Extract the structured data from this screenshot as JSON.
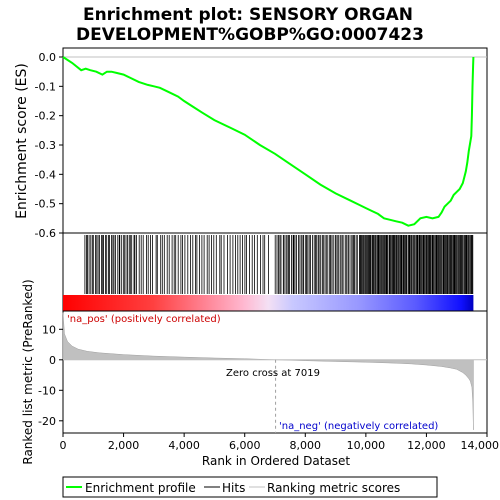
{
  "chart_data": {
    "type": "line",
    "title_lines": [
      "Enrichment plot: SENSORY ORGAN",
      "DEVELOPMENT%GOBP%GO:0007423"
    ],
    "xlabel": "Rank in Ordered Dataset",
    "ylabel_top": "Enrichment score (ES)",
    "ylabel_bottom": "Ranked list metric (PreRanked)",
    "xlim": [
      0,
      14000
    ],
    "x_ticks": [
      0,
      2000,
      4000,
      6000,
      8000,
      10000,
      12000,
      14000
    ],
    "x_tick_labels": [
      "0",
      "2,000",
      "4,000",
      "6,000",
      "8,000",
      "10,000",
      "12,000",
      "14,000"
    ],
    "es_ylim": [
      -0.6,
      0.0
    ],
    "es_ticks": [
      0.0,
      -0.1,
      -0.2,
      -0.3,
      -0.4,
      -0.5,
      -0.6
    ],
    "es_tick_labels": [
      "0.0",
      "-0.1",
      "-0.2",
      "-0.3",
      "-0.4",
      "-0.5",
      "-0.6"
    ],
    "metric_ylim": [
      -24,
      16
    ],
    "metric_ticks": [
      10,
      0,
      -10,
      -20
    ],
    "metric_tick_labels": [
      "10",
      "0",
      "-10",
      "-20"
    ],
    "n_genes": 13550,
    "zero_cross_rank": 7019,
    "zero_cross_label": "Zero cross at 7019",
    "pos_label": "'na_pos' (positively correlated)",
    "neg_label": "'na_neg' (negatively correlated)",
    "es_curve": {
      "x": [
        0,
        300,
        600,
        750,
        900,
        1100,
        1300,
        1450,
        1600,
        1800,
        2000,
        2200,
        2500,
        2800,
        3000,
        3200,
        3500,
        3800,
        4000,
        4300,
        4600,
        5000,
        5500,
        6000,
        6500,
        7000,
        7500,
        8000,
        8500,
        9000,
        9500,
        9800,
        10000,
        10200,
        10400,
        10600,
        10800,
        11000,
        11200,
        11400,
        11600,
        11800,
        12000,
        12200,
        12400,
        12500,
        12600,
        12700,
        12800,
        12900,
        13000,
        13100,
        13200,
        13300,
        13350,
        13400,
        13450,
        13480,
        13500,
        13520,
        13540,
        13550
      ],
      "y": [
        0.0,
        -0.02,
        -0.045,
        -0.04,
        -0.045,
        -0.05,
        -0.06,
        -0.05,
        -0.05,
        -0.055,
        -0.06,
        -0.07,
        -0.085,
        -0.095,
        -0.1,
        -0.105,
        -0.12,
        -0.135,
        -0.15,
        -0.17,
        -0.19,
        -0.215,
        -0.24,
        -0.265,
        -0.3,
        -0.33,
        -0.365,
        -0.4,
        -0.435,
        -0.465,
        -0.49,
        -0.505,
        -0.515,
        -0.525,
        -0.535,
        -0.55,
        -0.555,
        -0.56,
        -0.565,
        -0.575,
        -0.57,
        -0.55,
        -0.545,
        -0.55,
        -0.545,
        -0.53,
        -0.51,
        -0.5,
        -0.49,
        -0.47,
        -0.46,
        -0.45,
        -0.43,
        -0.39,
        -0.36,
        -0.32,
        -0.29,
        -0.27,
        -0.2,
        -0.1,
        -0.03,
        0.0
      ]
    },
    "hits_segments": [
      {
        "start": 700,
        "end": 2400,
        "count": 35
      },
      {
        "start": 2400,
        "end": 4700,
        "count": 30
      },
      {
        "start": 4700,
        "end": 6800,
        "count": 25
      },
      {
        "start": 7000,
        "end": 9800,
        "count": 60
      },
      {
        "start": 9800,
        "end": 12000,
        "count": 75
      },
      {
        "start": 12000,
        "end": 13550,
        "count": 55
      }
    ],
    "metric_curve": {
      "x": [
        0,
        50,
        150,
        300,
        500,
        800,
        1200,
        2000,
        3000,
        4000,
        5000,
        6000,
        7019,
        8000,
        9000,
        10000,
        11000,
        11500,
        12000,
        12500,
        12800,
        13000,
        13200,
        13300,
        13400,
        13450,
        13500,
        13530,
        13550
      ],
      "y": [
        15.5,
        8.5,
        6.0,
        4.5,
        3.5,
        2.8,
        2.3,
        1.7,
        1.2,
        0.9,
        0.6,
        0.35,
        0.0,
        -0.3,
        -0.55,
        -0.8,
        -1.1,
        -1.35,
        -1.7,
        -2.2,
        -2.7,
        -3.1,
        -4.2,
        -5.0,
        -6.2,
        -7.0,
        -9.0,
        -14.0,
        -23.0
      ]
    },
    "legend": {
      "placement": "bottom",
      "entries": [
        {
          "label": "Enrichment profile",
          "color": "#00ff00",
          "kind": "line"
        },
        {
          "label": "Hits",
          "color": "#000000",
          "kind": "line"
        },
        {
          "label": "Ranking metric scores",
          "color": "#c0c0c0",
          "kind": "line"
        }
      ]
    },
    "colors": {
      "es_line": "#00ff00",
      "hits": "#000000",
      "metric_fill": "#c0c0c0",
      "zero_line": "#c0c0c0",
      "pos_text": "#cc0000",
      "neg_text": "#0000cc",
      "bar_red": "#ff0000",
      "bar_pink": "#ffb0c8",
      "bar_lavender": "#c8c8ff",
      "bar_blue": "#2020ff"
    }
  }
}
